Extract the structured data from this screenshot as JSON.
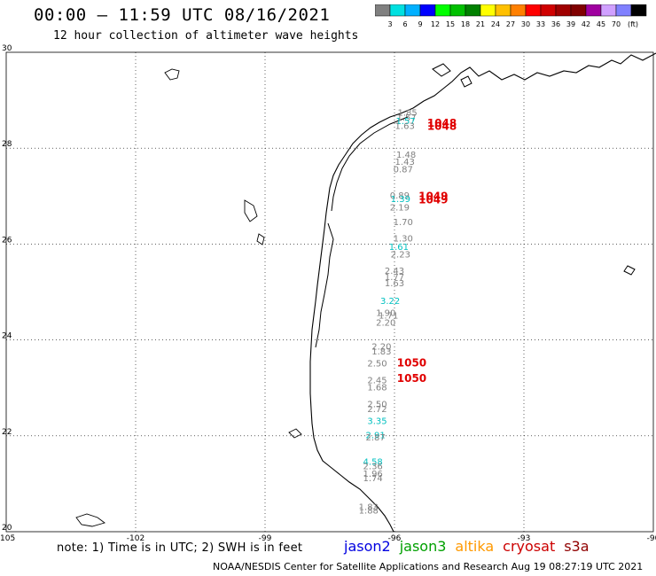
{
  "header": {
    "title": "00:00 – 11:59 UTC 08/16/2021",
    "subtitle": "12 hour collection of altimeter wave heights"
  },
  "colorbar": {
    "colors": [
      "#808080",
      "#00e0e0",
      "#00b0ff",
      "#0000ff",
      "#00ff00",
      "#00c000",
      "#008000",
      "#ffff00",
      "#ffc000",
      "#ff8000",
      "#ff0000",
      "#d00000",
      "#a00000",
      "#800000",
      "#a000a0",
      "#d0a0ff",
      "#8080ff",
      "#000000"
    ],
    "labels": [
      "3",
      "6",
      "9",
      "12",
      "15",
      "18",
      "21",
      "24",
      "27",
      "30",
      "33",
      "36",
      "39",
      "42",
      "45",
      "70"
    ],
    "unit": "(ft)"
  },
  "axes": {
    "lon_labels": [
      "-105",
      "-102",
      "-99",
      "-96",
      "-93",
      "-90"
    ],
    "lat_labels": [
      "30",
      "28",
      "26",
      "24",
      "22",
      "20"
    ]
  },
  "observations": [
    {
      "text": "1.85",
      "color": "#808080",
      "lon": -95.7,
      "lat": 28.68
    },
    {
      "text": "1.57",
      "color": "#808080",
      "lon": -95.72,
      "lat": 28.58
    },
    {
      "text": "1.57",
      "color": "#00c0c0",
      "lon": -95.74,
      "lat": 28.5
    },
    {
      "text": "1.63",
      "color": "#808080",
      "lon": -95.76,
      "lat": 28.4
    },
    {
      "text": "1.48",
      "color": "#808080",
      "lon": -95.73,
      "lat": 27.8
    },
    {
      "text": "1.43",
      "color": "#808080",
      "lon": -95.76,
      "lat": 27.65
    },
    {
      "text": "0.87",
      "color": "#808080",
      "lon": -95.8,
      "lat": 27.5
    },
    {
      "text": "0.89",
      "color": "#808080",
      "lon": -95.88,
      "lat": 26.95
    },
    {
      "text": "1.39",
      "color": "#00c0c0",
      "lon": -95.86,
      "lat": 26.88
    },
    {
      "text": "2.19",
      "color": "#808080",
      "lon": -95.88,
      "lat": 26.7
    },
    {
      "text": "1.70",
      "color": "#808080",
      "lon": -95.8,
      "lat": 26.4
    },
    {
      "text": "1.30",
      "color": "#808080",
      "lon": -95.8,
      "lat": 26.05
    },
    {
      "text": "1.61",
      "color": "#00c0c0",
      "lon": -95.9,
      "lat": 25.88
    },
    {
      "text": "2.23",
      "color": "#808080",
      "lon": -95.86,
      "lat": 25.72
    },
    {
      "text": "2.43",
      "color": "#808080",
      "lon": -96.0,
      "lat": 25.38
    },
    {
      "text": "1.77",
      "color": "#808080",
      "lon": -96.0,
      "lat": 25.25
    },
    {
      "text": "1.63",
      "color": "#808080",
      "lon": -96.0,
      "lat": 25.12
    },
    {
      "text": "3.22",
      "color": "#00c0c0",
      "lon": -96.1,
      "lat": 24.75
    },
    {
      "text": "1.90",
      "color": "#808080",
      "lon": -96.2,
      "lat": 24.5
    },
    {
      "text": "1.71",
      "color": "#808080",
      "lon": -96.14,
      "lat": 24.45
    },
    {
      "text": "2.20",
      "color": "#808080",
      "lon": -96.2,
      "lat": 24.3
    },
    {
      "text": "2.20",
      "color": "#808080",
      "lon": -96.3,
      "lat": 23.8
    },
    {
      "text": "1.83",
      "color": "#808080",
      "lon": -96.3,
      "lat": 23.7
    },
    {
      "text": "2.50",
      "color": "#808080",
      "lon": -96.4,
      "lat": 23.45
    },
    {
      "text": "2.45",
      "color": "#808080",
      "lon": -96.4,
      "lat": 23.1
    },
    {
      "text": "1.68",
      "color": "#808080",
      "lon": -96.4,
      "lat": 22.95
    },
    {
      "text": "2.50",
      "color": "#808080",
      "lon": -96.4,
      "lat": 22.6
    },
    {
      "text": "2.72",
      "color": "#808080",
      "lon": -96.4,
      "lat": 22.5
    },
    {
      "text": "3.35",
      "color": "#00c0c0",
      "lon": -96.4,
      "lat": 22.25
    },
    {
      "text": "2.91",
      "color": "#00c0c0",
      "lon": -96.44,
      "lat": 21.95
    },
    {
      "text": "2.87",
      "color": "#808080",
      "lon": -96.44,
      "lat": 21.9
    },
    {
      "text": "4.58",
      "color": "#00c0c0",
      "lon": -96.5,
      "lat": 21.4
    },
    {
      "text": "2.36",
      "color": "#808080",
      "lon": -96.5,
      "lat": 21.3
    },
    {
      "text": "1.96",
      "color": "#808080",
      "lon": -96.5,
      "lat": 21.15
    },
    {
      "text": "1.74",
      "color": "#808080",
      "lon": -96.5,
      "lat": 21.05
    },
    {
      "text": "1.83",
      "color": "#808080",
      "lon": -96.6,
      "lat": 20.45
    },
    {
      "text": "1.88",
      "color": "#808080",
      "lon": -96.6,
      "lat": 20.38
    }
  ],
  "pressures": [
    {
      "text": "1048",
      "lon": -94.9,
      "lat": 28.45
    },
    {
      "text": "1048",
      "lon": -94.9,
      "lat": 28.38
    },
    {
      "text": "1049",
      "lon": -95.1,
      "lat": 26.92
    },
    {
      "text": "1049",
      "lon": -95.1,
      "lat": 26.85
    },
    {
      "text": "1050",
      "lon": -95.6,
      "lat": 23.45
    },
    {
      "text": "1050",
      "lon": -95.6,
      "lat": 23.12
    }
  ],
  "footer": {
    "note": "note: 1) Time is in UTC; 2) SWH is in feet",
    "credit": "NOAA/NESDIS Center for Satellite Applications and Research    Aug 19 08:27:19 UTC 2021"
  },
  "satellites": [
    {
      "name": "jason2",
      "color": "#0000e0"
    },
    {
      "name": "jason3",
      "color": "#00a000"
    },
    {
      "name": "altika",
      "color": "#ff9900"
    },
    {
      "name": "cryosat",
      "color": "#cc0000"
    },
    {
      "name": "s3a",
      "color": "#900000"
    }
  ]
}
